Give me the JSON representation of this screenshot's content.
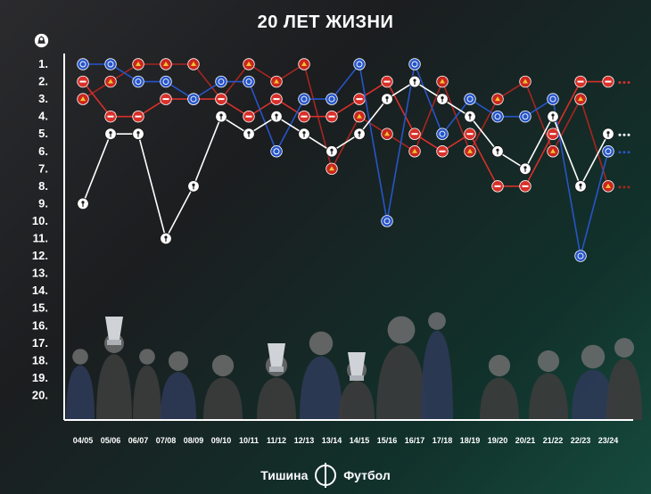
{
  "title": "20 ЛЕТ ЖИЗНИ",
  "footer": {
    "left": "Тишина",
    "right": "Футбол"
  },
  "colors": {
    "background_start": "#2b2b2e",
    "background_end": "#164a3d",
    "red_team": "#e0342c",
    "blue_team": "#2755c8",
    "white_team": "#ffffff",
    "arsenal_line": "#d8302a",
    "manutd_line": "#a8251f"
  },
  "league_icon": "premier-league-lion-icon",
  "chart_data": {
    "type": "line",
    "title": "20 ЛЕТ ЖИЗНИ",
    "xlabel": "",
    "ylabel": "",
    "y_inverted": true,
    "ylim": [
      1,
      20
    ],
    "y_ticks": [
      "1.",
      "2.",
      "3.",
      "4.",
      "5.",
      "6.",
      "7.",
      "8.",
      "9.",
      "10.",
      "11.",
      "12.",
      "13.",
      "14.",
      "15.",
      "16.",
      "17.",
      "18.",
      "19.",
      "20."
    ],
    "x": [
      "04/05",
      "05/06",
      "06/07",
      "07/08",
      "08/09",
      "09/10",
      "10/11",
      "11/12",
      "12/13",
      "13/14",
      "14/15",
      "15/16",
      "16/17",
      "17/18",
      "18/19",
      "19/20",
      "20/21",
      "21/22",
      "22/23",
      "23/24"
    ],
    "grid": false,
    "legend": "none",
    "series": [
      {
        "team": "arsenal",
        "color": "#d8302a",
        "icon": "cannon-icon",
        "values": [
          2,
          4,
          4,
          3,
          3,
          3,
          4,
          3,
          4,
          4,
          3,
          2,
          5,
          6,
          5,
          8,
          8,
          5,
          2,
          2
        ],
        "continues": true
      },
      {
        "team": "chelsea",
        "color": "#2755c8",
        "icon": "lion-icon",
        "values": [
          1,
          1,
          2,
          2,
          3,
          2,
          2,
          6,
          3,
          3,
          1,
          10,
          1,
          5,
          3,
          4,
          4,
          3,
          12,
          6
        ],
        "continues": true
      },
      {
        "team": "manutd",
        "color": "#a8251f",
        "icon": "devil-icon",
        "values": [
          3,
          2,
          1,
          1,
          1,
          3,
          1,
          2,
          1,
          7,
          4,
          5,
          6,
          2,
          6,
          3,
          2,
          6,
          3,
          8
        ],
        "continues": true
      },
      {
        "team": "tottenham",
        "color": "#ffffff",
        "icon": "cockerel-icon",
        "values": [
          9,
          5,
          5,
          11,
          8,
          4,
          5,
          4,
          5,
          6,
          5,
          3,
          2,
          3,
          4,
          6,
          7,
          4,
          8,
          5
        ],
        "continues": true
      }
    ]
  }
}
